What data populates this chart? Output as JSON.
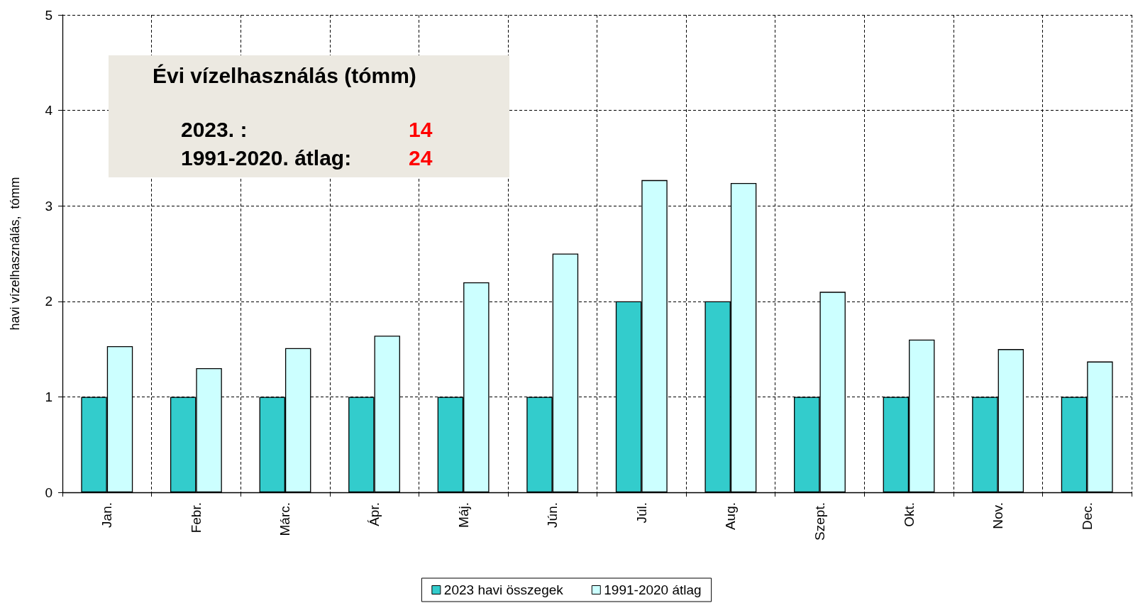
{
  "chart_data": {
    "type": "bar",
    "ylabel": "havi vízelhasználás,  tómm",
    "categories": [
      "Jan.",
      "Febr.",
      "Márc.",
      "Ápr.",
      "Máj.",
      "Jún.",
      "Júl.",
      "Aug.",
      "Szept.",
      "Okt.",
      "Nov.",
      "Dec."
    ],
    "series": [
      {
        "name": "2023 havi összegek",
        "color": "#33cccc",
        "values": [
          1,
          1,
          1,
          1,
          1,
          1,
          2,
          2,
          1,
          1,
          1,
          1
        ]
      },
      {
        "name": "1991-2020 átlag",
        "color": "#ccffff",
        "values": [
          1.53,
          1.3,
          1.51,
          1.64,
          2.2,
          2.5,
          3.27,
          3.24,
          2.1,
          1.6,
          1.5,
          1.37
        ]
      }
    ],
    "ylim": [
      0,
      5
    ],
    "yticks": [
      0,
      1,
      2,
      3,
      4,
      5
    ],
    "grid": true,
    "legend": "bottom",
    "annotations": [
      "Évi vízelhasználás (tómm)",
      "2023. :",
      "14",
      "1991-2020. átlag:",
      "24"
    ]
  }
}
